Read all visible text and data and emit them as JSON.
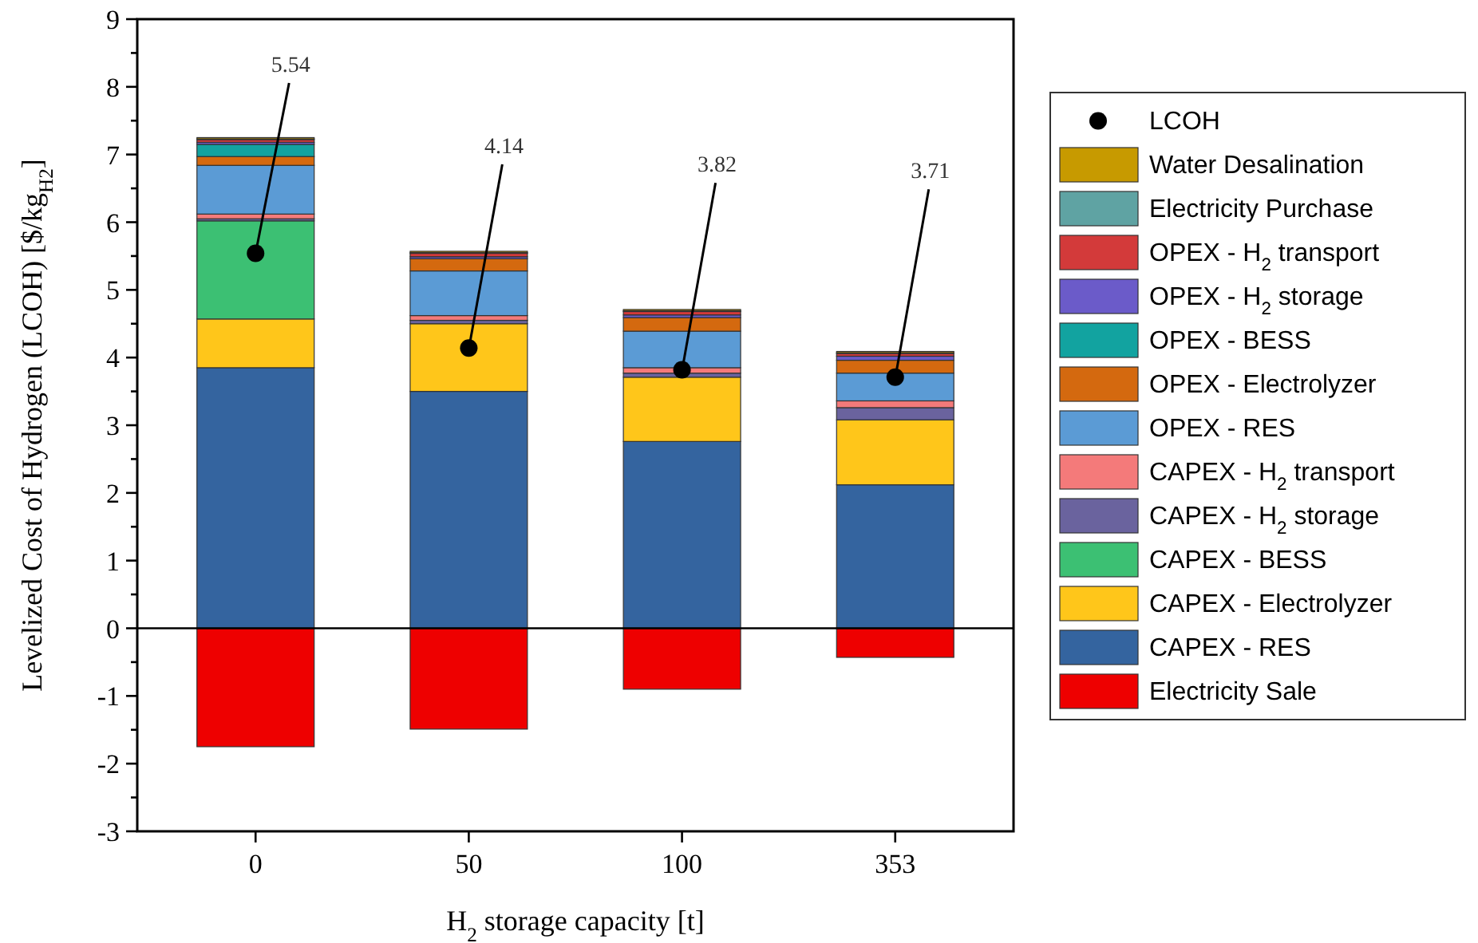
{
  "chart_data": {
    "type": "bar",
    "stacked": true,
    "xlabel": "H$_{2}$ storage capacity [t]",
    "ylabel": "Levelized Cost of Hydrogen (LCOH) [$/kg$_{H2}$]",
    "categories": [
      "0",
      "50",
      "100",
      "353"
    ],
    "ylim": [
      -3,
      9
    ],
    "yticks": [
      -3,
      {
        "value": -2.5,
        "label": null
      },
      -2,
      {
        "value": -1.5,
        "label": null
      },
      -1,
      {
        "value": -0.5,
        "label": null
      },
      0,
      {
        "value": 0.5,
        "label": null
      },
      1,
      {
        "value": 1.5,
        "label": null
      },
      2,
      {
        "value": 2.5,
        "label": null
      },
      3,
      {
        "value": 3.5,
        "label": null
      },
      4,
      {
        "value": 4.5,
        "label": null
      },
      5,
      {
        "value": 5.5,
        "label": null
      },
      6,
      {
        "value": 6.5,
        "label": null
      },
      7,
      {
        "value": 7.5,
        "label": null
      },
      8,
      {
        "value": 8.5,
        "label": null
      },
      9
    ],
    "legend": "right",
    "ref_lines": [
      {
        "axis": "y",
        "value": 0,
        "color": "#000000"
      }
    ],
    "series": [
      {
        "name": "Electricity Sale",
        "color": "#ee0000",
        "values": [
          -1.75,
          -1.49,
          -0.9,
          -0.43
        ]
      },
      {
        "name": "CAPEX - RES",
        "color": "#34649f",
        "values": [
          3.85,
          3.5,
          2.76,
          2.12
        ]
      },
      {
        "name": "CAPEX - Electrolyzer",
        "color": "#ffc61a",
        "values": [
          0.72,
          1.0,
          0.95,
          0.96
        ]
      },
      {
        "name": "CAPEX - BESS",
        "color": "#3cc073",
        "values": [
          1.45,
          0,
          0,
          0
        ]
      },
      {
        "name": "CAPEX - H$_{2}$ storage",
        "color": "#6a639e",
        "values": [
          0.03,
          0.05,
          0.06,
          0.18
        ]
      },
      {
        "name": "CAPEX - H$_{2}$ transport",
        "color": "#f47a7a",
        "values": [
          0.07,
          0.07,
          0.08,
          0.1
        ]
      },
      {
        "name": "OPEX - RES",
        "color": "#5b9bd5",
        "values": [
          0.72,
          0.66,
          0.54,
          0.41
        ]
      },
      {
        "name": "OPEX - Electrolyzer",
        "color": "#d4690f",
        "values": [
          0.13,
          0.18,
          0.2,
          0.19
        ]
      },
      {
        "name": "OPEX - BESS",
        "color": "#12a3a0",
        "values": [
          0.18,
          0,
          0,
          0
        ]
      },
      {
        "name": "OPEX - H$_{2}$ storage",
        "color": "#6b5bc9",
        "values": [
          0.03,
          0.03,
          0.04,
          0.06
        ]
      },
      {
        "name": "OPEX - H$_{2}$ transport",
        "color": "#d33a3a",
        "values": [
          0.04,
          0.05,
          0.05,
          0.04
        ]
      },
      {
        "name": "Electricity Purchase",
        "color": "#5fa3a3",
        "values": [
          0.01,
          0.01,
          0.01,
          0.01
        ]
      },
      {
        "name": "Water Desalination",
        "color": "#c79a00",
        "values": [
          0.02,
          0.02,
          0.02,
          0.02
        ]
      },
      {
        "name": "LCOH",
        "type": "scatter",
        "marker": "circle",
        "color": "#000000",
        "x": [
          "0",
          "50",
          "100",
          "353"
        ],
        "values": [
          5.54,
          4.14,
          3.82,
          3.71
        ]
      }
    ],
    "annotations": [
      {
        "text": "5.54",
        "x": "0",
        "y": 5.54
      },
      {
        "text": "4.14",
        "x": "50",
        "y": 4.14
      },
      {
        "text": "3.82",
        "x": "100",
        "y": 3.82
      },
      {
        "text": "3.71",
        "x": "353",
        "y": 3.71
      }
    ]
  }
}
